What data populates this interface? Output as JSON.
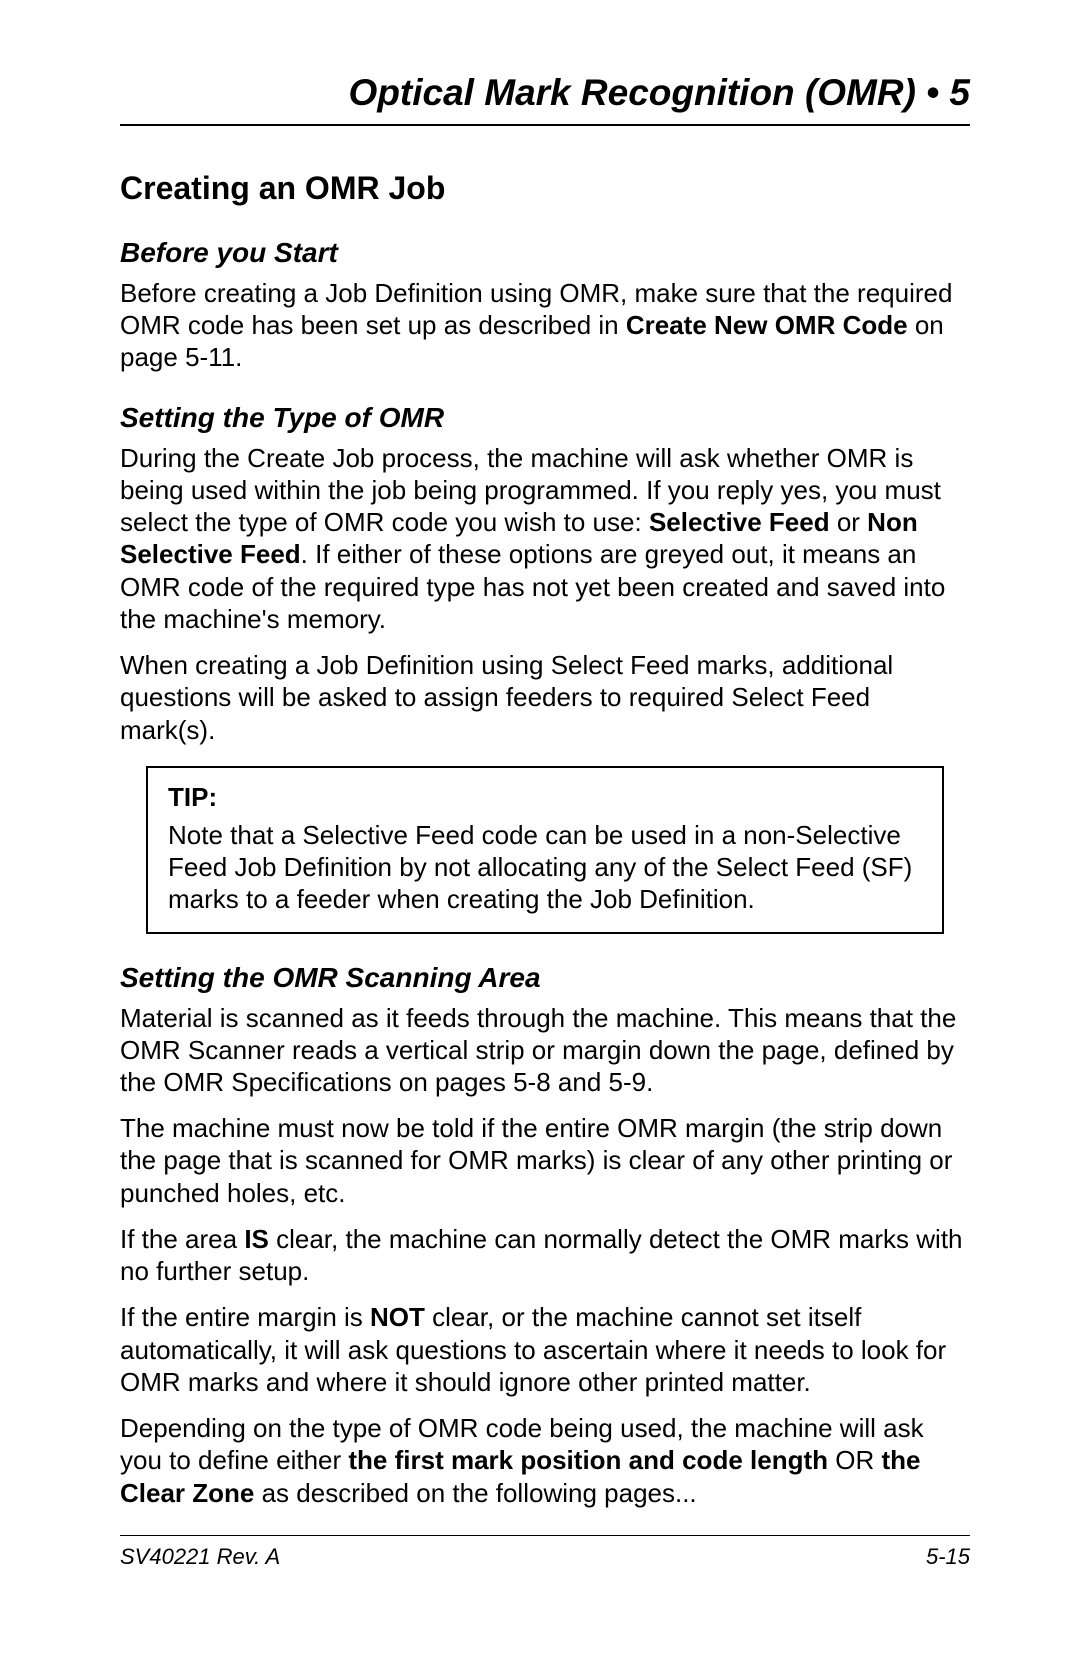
{
  "header": {
    "chapter_title": "Optical Mark Recognition (OMR) • 5"
  },
  "section": {
    "heading": "Creating an OMR Job"
  },
  "before_start": {
    "heading": "Before you Start",
    "p1_a": "Before creating a Job Definition using OMR, make sure that the required OMR code has been set up as described in ",
    "p1_b": "Create New OMR Code",
    "p1_c": " on page 5-11."
  },
  "setting_type": {
    "heading": "Setting the Type of OMR",
    "p1_a": "During the Create Job process, the machine will ask whether OMR is being used within the job being programmed. If you reply yes, you must select the type of OMR code you wish to use: ",
    "p1_b": "Selective Feed",
    "p1_c": " or ",
    "p1_d": "Non Selective Feed",
    "p1_e": ". If either of these options are greyed out, it means an OMR code of the required type has not yet been created and saved into the machine's memory.",
    "p2": "When creating a Job Definition using Select Feed marks, additional questions will be asked to assign feeders to required Select Feed mark(s)."
  },
  "tip": {
    "label": "TIP:",
    "text": "Note that a Selective Feed code can be used in a non-Selective Feed Job Definition by not allocating any of the Select Feed (SF) marks to a feeder when creating the Job Definition."
  },
  "scanning_area": {
    "heading": "Setting the OMR Scanning Area",
    "p1": "Material is scanned as it feeds through the machine. This means that the OMR Scanner reads a vertical strip or margin down the page, defined by the OMR Specifications on pages 5-8 and 5-9.",
    "p2": "The machine must now be told if the entire OMR margin (the strip down the page that is scanned for OMR marks) is clear of any other printing or punched holes, etc.",
    "p3_a": "If the area ",
    "p3_b": "IS",
    "p3_c": " clear, the machine can normally detect the OMR marks with no further setup.",
    "p4_a": "If the entire margin is ",
    "p4_b": "NOT",
    "p4_c": " clear, or the machine cannot set itself automatically, it will ask questions to ascertain where it needs to look for OMR marks and where it should ignore other printed matter.",
    "p5_a": "Depending on the type of OMR code being used, the machine will ask you to define either ",
    "p5_b": "the first mark position and code length",
    "p5_c": " OR ",
    "p5_d": "the Clear Zone",
    "p5_e": " as described on the following pages..."
  },
  "footer": {
    "doc_id": "SV40221 Rev. A",
    "page_num": "5-15"
  }
}
